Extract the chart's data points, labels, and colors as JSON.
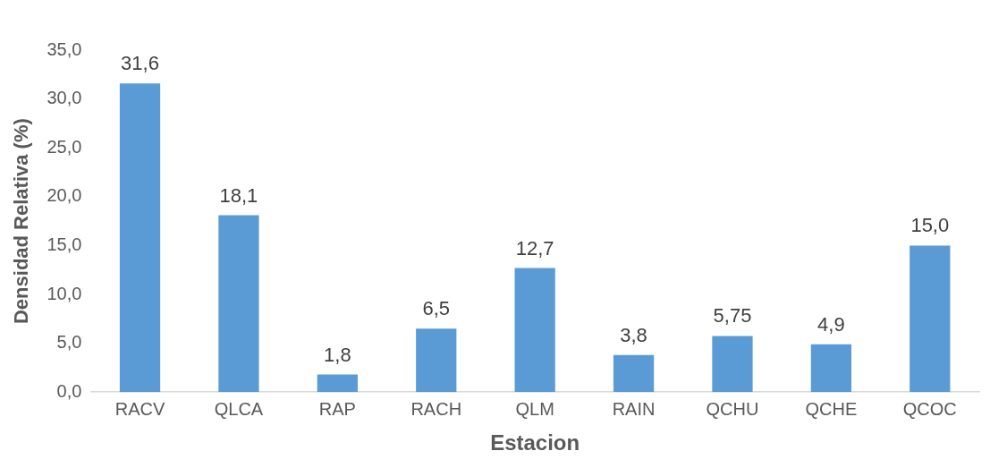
{
  "chart_data": {
    "type": "bar",
    "xlabel": "Estacion",
    "ylabel": "Densidad Relativa (%)",
    "categories": [
      "RACV",
      "QLCA",
      "RAP",
      "RACH",
      "QLM",
      "RAIN",
      "QCHU",
      "QCHE",
      "QCOC"
    ],
    "values": [
      31.6,
      18.1,
      1.8,
      6.5,
      12.7,
      3.8,
      5.75,
      4.9,
      15.0
    ],
    "value_labels": [
      "31,6",
      "18,1",
      "1,8",
      "6,5",
      "12,7",
      "3,8",
      "5,75",
      "4,9",
      "15,0"
    ],
    "color": "#5b9bd5",
    "ylim": [
      0,
      35
    ],
    "yticks": [
      {
        "value": 0,
        "label": "0,0"
      },
      {
        "value": 5,
        "label": "5,0"
      },
      {
        "value": 10,
        "label": "10,0"
      },
      {
        "value": 15,
        "label": "15,0"
      },
      {
        "value": 20,
        "label": "20,0"
      },
      {
        "value": 25,
        "label": "25,0"
      },
      {
        "value": 30,
        "label": "30,0"
      },
      {
        "value": 35,
        "label": "35,0"
      }
    ],
    "grid": false,
    "legend": false
  }
}
